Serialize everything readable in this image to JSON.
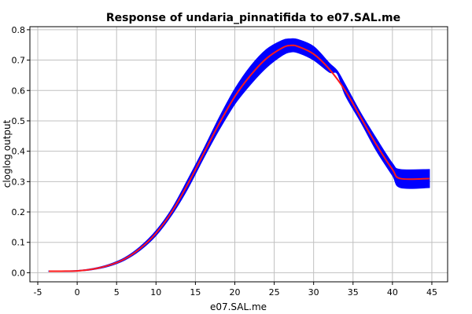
{
  "chart_data": {
    "type": "line",
    "title": "Response of undaria_pinnatifida to e07.SAL.me",
    "xlabel": "e07.SAL.me",
    "ylabel": "cloglog output",
    "xlim": [
      -6,
      47
    ],
    "ylim": [
      -0.03,
      0.81
    ],
    "xticks": [
      -5,
      0,
      5,
      10,
      15,
      20,
      25,
      30,
      35,
      40,
      45
    ],
    "yticks": [
      0.0,
      0.1,
      0.2,
      0.3,
      0.4,
      0.5,
      0.6,
      0.7,
      0.8
    ],
    "xtick_labels": [
      "-5",
      "0",
      "5",
      "10",
      "15",
      "20",
      "25",
      "30",
      "35",
      "40",
      "45"
    ],
    "ytick_labels": [
      "0.0",
      "0.1",
      "0.2",
      "0.3",
      "0.4",
      "0.5",
      "0.6",
      "0.7",
      "0.8"
    ],
    "grid": true,
    "colors": {
      "mean": "#ff1a1a",
      "band": "#0000ff"
    },
    "series": [
      {
        "role": "mean",
        "x": [
          -3.6,
          -2,
          0,
          2,
          4,
          6,
          8,
          10,
          12,
          14,
          16,
          18,
          20,
          22,
          24,
          26,
          27,
          28,
          30,
          32,
          34,
          36,
          38,
          40,
          41,
          44.7
        ],
        "y": [
          0.005,
          0.005,
          0.006,
          0.012,
          0.024,
          0.045,
          0.08,
          0.13,
          0.2,
          0.29,
          0.39,
          0.49,
          0.58,
          0.65,
          0.705,
          0.74,
          0.748,
          0.745,
          0.72,
          0.67,
          0.6,
          0.51,
          0.42,
          0.34,
          0.31,
          0.31
        ]
      },
      {
        "role": "band",
        "x": [
          -3.6,
          -2,
          0,
          2,
          4,
          6,
          8,
          10,
          12,
          14,
          16,
          18,
          20,
          22,
          24,
          26,
          27,
          28,
          30,
          32,
          33,
          34,
          36,
          38,
          40,
          41,
          44.7
        ],
        "upper": [
          0.006,
          0.006,
          0.007,
          0.014,
          0.027,
          0.049,
          0.086,
          0.138,
          0.21,
          0.305,
          0.405,
          0.51,
          0.605,
          0.68,
          0.735,
          0.765,
          0.77,
          0.768,
          0.745,
          0.69,
          0.665,
          0.62,
          0.525,
          0.44,
          0.36,
          0.34,
          0.34
        ],
        "lower": [
          0.004,
          0.004,
          0.005,
          0.01,
          0.021,
          0.041,
          0.074,
          0.122,
          0.19,
          0.275,
          0.375,
          0.47,
          0.555,
          0.62,
          0.675,
          0.715,
          0.726,
          0.724,
          0.7,
          0.66,
          0.655,
          0.585,
          0.495,
          0.4,
          0.32,
          0.28,
          0.28
        ]
      }
    ]
  }
}
